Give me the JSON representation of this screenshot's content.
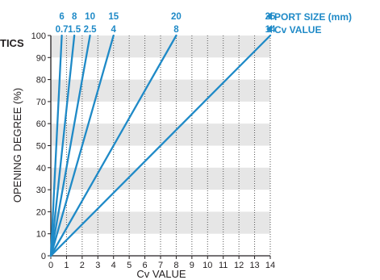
{
  "chart_data": {
    "type": "line",
    "title_fragment": "TICS",
    "xlabel": "Cv VALUE",
    "ylabel": "OPENING DEGREE (%)",
    "xlim": [
      0,
      14
    ],
    "ylim": [
      0,
      100
    ],
    "x_ticks": [
      "0",
      "1",
      "2",
      "3",
      "4",
      "5",
      "6",
      "7",
      "8",
      "9",
      "10",
      "11",
      "12",
      "13",
      "14"
    ],
    "y_ticks": [
      "0",
      "10",
      "20",
      "30",
      "40",
      "50",
      "60",
      "70",
      "80",
      "90",
      "100"
    ],
    "grid": "vertical dotted lines, alternating grey horizontal bands",
    "legend": {
      "port_size": "PORT SIZE (mm)",
      "cv_value": "Cv VALUE"
    },
    "series": [
      {
        "port_size": "6",
        "cv": "0.7",
        "points": [
          [
            0,
            0
          ],
          [
            0.7,
            100
          ]
        ]
      },
      {
        "port_size": "8",
        "cv": "1.5",
        "points": [
          [
            0,
            0
          ],
          [
            1.5,
            100
          ]
        ]
      },
      {
        "port_size": "10",
        "cv": "2.5",
        "points": [
          [
            0,
            0
          ],
          [
            2.5,
            100
          ]
        ]
      },
      {
        "port_size": "15",
        "cv": "4",
        "points": [
          [
            0,
            0
          ],
          [
            4,
            100
          ]
        ]
      },
      {
        "port_size": "20",
        "cv": "8",
        "points": [
          [
            0,
            0
          ],
          [
            8,
            100
          ]
        ]
      },
      {
        "port_size": "25",
        "cv": "14",
        "points": [
          [
            0,
            0
          ],
          [
            14,
            100
          ]
        ]
      }
    ],
    "colors": {
      "line": "#1f8ac7",
      "band": "#e6e6e6",
      "axis": "#231f20",
      "grid": "#555555"
    }
  }
}
